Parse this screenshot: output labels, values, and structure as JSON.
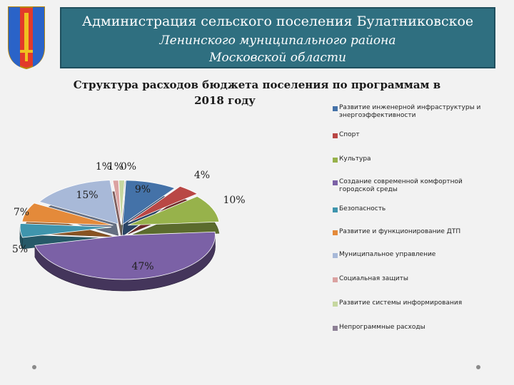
{
  "header": {
    "line1": "Администрация сельского поселения Булатниковское",
    "line2": "Ленинского муниципального района",
    "line3": "Московской области"
  },
  "chart_data": {
    "type": "pie",
    "title_line1": "Структура расходов бюджета поселения по программам в",
    "title_line2": "2018 году",
    "legend_position": "right",
    "slices": [
      {
        "name": "Развитие инженерной инфраструктуры и энергоэффективности",
        "value": 9,
        "label": "9%",
        "color": "#4472a8"
      },
      {
        "name": "Спорт",
        "value": 4,
        "label": "4%",
        "color": "#b94745"
      },
      {
        "name": "Культура",
        "value": 10,
        "label": "10%",
        "color": "#97b24b"
      },
      {
        "name": "Создание современной комфортной городской среды",
        "value": 47,
        "label": "47%",
        "color": "#7b61a6"
      },
      {
        "name": "Безопасность",
        "value": 5,
        "label": "5%",
        "color": "#3f95ad"
      },
      {
        "name": "Развитие и функционирование ДТП",
        "value": 7,
        "label": "7%",
        "color": "#e48a3a"
      },
      {
        "name": "Муниципальное управление",
        "value": 15,
        "label": "15%",
        "color": "#a8b9d8"
      },
      {
        "name": "Социальная защиты",
        "value": 1,
        "label": "1%",
        "color": "#dba2a1"
      },
      {
        "name": "Развитие системы информирования",
        "value": 1,
        "label": "1%",
        "color": "#c6d7a0"
      },
      {
        "name": "Непрограммные расходы",
        "value": 0,
        "label": "0%",
        "color": "#8d8095"
      }
    ]
  }
}
